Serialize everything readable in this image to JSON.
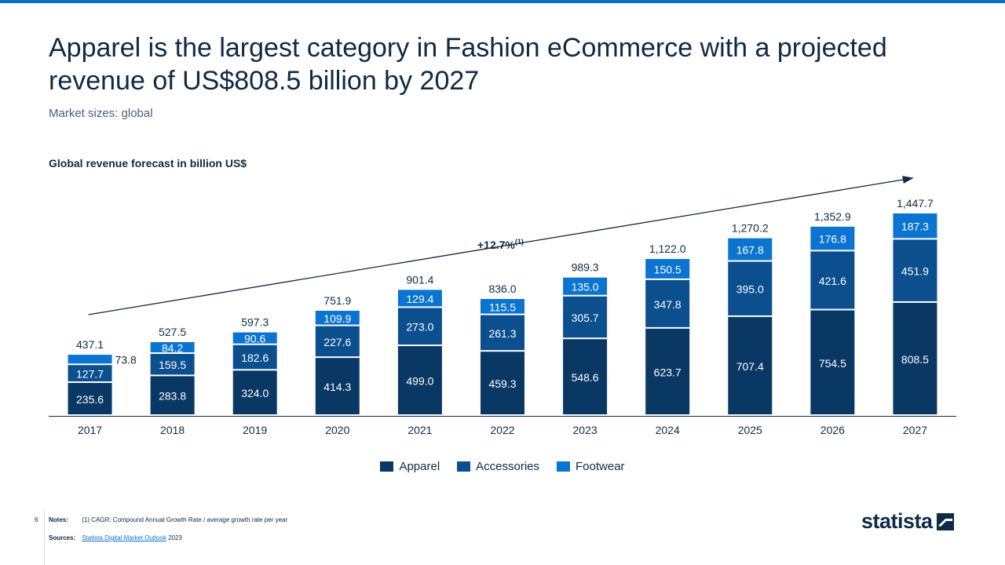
{
  "header": {
    "title": "Apparel is the largest category in Fashion eCommerce with a projected revenue of US$808.5 billion by 2027",
    "subtitle": "Market sizes: global"
  },
  "chart_data": {
    "type": "bar",
    "stacked": true,
    "title": "Global revenue forecast in billion US$",
    "xlabel": "",
    "ylabel": "",
    "ylim": [
      0,
      1447.7
    ],
    "grid": false,
    "legend_position": "bottom-center",
    "categories": [
      "2017",
      "2018",
      "2019",
      "2020",
      "2021",
      "2022",
      "2023",
      "2024",
      "2025",
      "2026",
      "2027"
    ],
    "series": [
      {
        "name": "Apparel",
        "color": "#0a3864",
        "values": [
          235.6,
          283.8,
          324.0,
          414.3,
          499.0,
          459.3,
          548.6,
          623.7,
          707.4,
          754.5,
          808.5
        ]
      },
      {
        "name": "Accessories",
        "color": "#0b4f8f",
        "values": [
          127.7,
          159.5,
          182.6,
          227.6,
          273.0,
          261.3,
          305.7,
          347.8,
          395.0,
          421.6,
          451.9
        ]
      },
      {
        "name": "Footwear",
        "color": "#0b74d0",
        "values": [
          73.8,
          84.2,
          90.6,
          109.9,
          129.4,
          115.5,
          135.0,
          150.5,
          167.8,
          176.8,
          187.3
        ]
      }
    ],
    "totals": [
      437.1,
      527.5,
      597.3,
      751.9,
      901.4,
      836.0,
      989.3,
      1122.0,
      1270.2,
      1352.9,
      1447.7
    ],
    "value_labels": {
      "Apparel": [
        "235.6",
        "283.8",
        "324.0",
        "414.3",
        "499.0",
        "459.3",
        "548.6",
        "623.7",
        "707.4",
        "754.5",
        "808.5"
      ],
      "Accessories": [
        "127.7",
        "159.5",
        "182.6",
        "227.6",
        "273.0",
        "261.3",
        "305.7",
        "347.8",
        "395.0",
        "421.6",
        "451.9"
      ],
      "Footwear": [
        "73.8",
        "84.2",
        "90.6",
        "109.9",
        "129.4",
        "115.5",
        "135.0",
        "150.5",
        "167.8",
        "176.8",
        "187.3"
      ]
    },
    "total_labels": [
      "437.1",
      "527.5",
      "597.3",
      "751.9",
      "901.4",
      "836.0",
      "989.3",
      "1,122.0",
      "1,270.2",
      "1,352.9",
      "1,447.7"
    ],
    "annotations": [
      {
        "type": "trend-arrow",
        "text": "+12.7%",
        "superscript": "(1)"
      }
    ]
  },
  "footer": {
    "page_number": "6",
    "notes_label": "Notes:",
    "notes_text": "(1) CAGR: Compound Annual Growth Rate / average growth rate per year",
    "sources_label": "Sources:",
    "sources_link": "Statista Digital Market Outlook",
    "sources_year": "2023"
  },
  "brand": {
    "logo_text": "statista",
    "logo_icon": "statista-logo-icon"
  }
}
